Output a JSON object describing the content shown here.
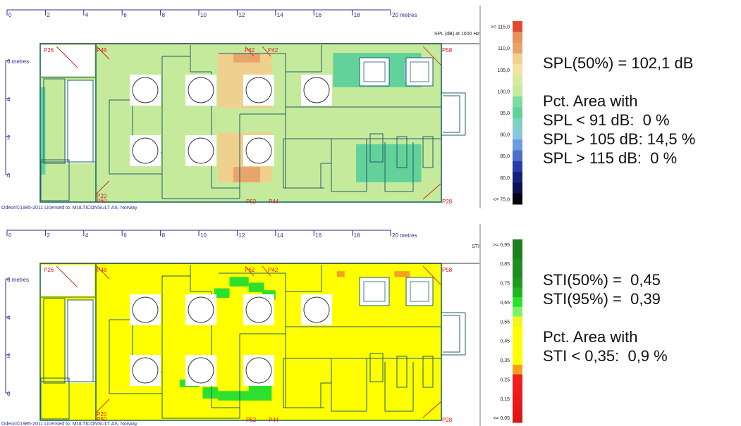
{
  "chart_data": [
    {
      "type": "heatmap",
      "title": "",
      "x_axis": {
        "unit_label": "metres",
        "ticks": [
          "0",
          "2",
          "4",
          "6",
          "8",
          "10",
          "12",
          "14",
          "16",
          "18",
          "20 metres"
        ],
        "range": [
          0,
          20
        ]
      },
      "y_axis": {
        "unit_label": "metres",
        "ticks": [
          "0",
          "2",
          "4",
          "6 metres"
        ],
        "range": [
          0,
          6
        ]
      },
      "legend": {
        "title": "SPL (dB) at 1000 Hz",
        "placement": "right",
        "entries": [
          {
            "label": ">= 115,0",
            "color": "#e04a32"
          },
          {
            "label": "",
            "color": "#e8935c"
          },
          {
            "label": "110,0",
            "color": "#e9a46c"
          },
          {
            "label": "",
            "color": "#efd08e"
          },
          {
            "label": "105,0",
            "color": "#f3e3a3"
          },
          {
            "label": "",
            "color": "#d6eaa4"
          },
          {
            "label": "100,0",
            "color": "#c6ea9c"
          },
          {
            "label": "",
            "color": "#7fd9a2"
          },
          {
            "label": "95,0",
            "color": "#62d19a"
          },
          {
            "label": "",
            "color": "#7fd0c2"
          },
          {
            "label": "90,0",
            "color": "#86c8dc"
          },
          {
            "label": "",
            "color": "#6d9be0"
          },
          {
            "label": "85,0",
            "color": "#4d6fc9"
          },
          {
            "label": "",
            "color": "#2a3aa6"
          },
          {
            "label": "80,0",
            "color": "#15207a"
          },
          {
            "label": "",
            "color": "#0c1250"
          },
          {
            "label": "<= 75,0",
            "color": "#050510"
          }
        ]
      },
      "base_color": "#c6ea9c",
      "zones": [
        {
          "color": "#62d19a",
          "x": [
            0,
            2
          ],
          "y": [
            0,
            4.6
          ]
        },
        {
          "color": "#efd08e",
          "x": [
            11,
            13.8
          ],
          "y": [
            -0.4,
            2.2
          ]
        },
        {
          "color": "#efd08e",
          "x": [
            11,
            13.8
          ],
          "y": [
            3.5,
            6.4
          ]
        },
        {
          "color": "#e9a46c",
          "x": [
            11.8,
            13.2
          ],
          "y": [
            -0.4,
            0.4
          ]
        },
        {
          "color": "#e9a46c",
          "x": [
            11.8,
            13.2
          ],
          "y": [
            5.9,
            6.4
          ]
        },
        {
          "color": "#62d19a",
          "x": [
            17,
            21.6
          ],
          "y": [
            4.6,
            6.4
          ]
        },
        {
          "color": "#62d19a",
          "x": [
            18.2,
            21.6
          ],
          "y": [
            -0.4,
            1.6
          ]
        },
        {
          "color": "#86c8dc",
          "x": [
            20.7,
            21.2
          ],
          "y": [
            4.9,
            5.9
          ]
        }
      ],
      "point_labels": [
        "P26",
        "P48",
        "P62",
        "P42",
        "P58",
        "P20",
        "P60",
        "P52",
        "P44",
        "P28"
      ],
      "credit": "Odeon©1985-2011   Licensed to: MULTICONSULT AS, Norway"
    },
    {
      "type": "heatmap",
      "title": "",
      "x_axis": {
        "unit_label": "metres",
        "ticks": [
          "0",
          "2",
          "4",
          "6",
          "8",
          "10",
          "12",
          "14",
          "16",
          "18",
          "20 metres"
        ],
        "range": [
          0,
          20
        ]
      },
      "y_axis": {
        "unit_label": "metres",
        "ticks": [
          "0",
          "2",
          "4",
          "6 metres"
        ],
        "range": [
          0,
          6
        ]
      },
      "legend": {
        "title": "STI",
        "placement": "right",
        "entries": [
          {
            "label": ">= 0,95",
            "color": "#1e7d1e"
          },
          {
            "label": "",
            "color": "#1e7d1e"
          },
          {
            "label": "0,85",
            "color": "#1e8c1e"
          },
          {
            "label": "",
            "color": "#1e8c1e"
          },
          {
            "label": "0,75",
            "color": "#1f9a1f"
          },
          {
            "label": "",
            "color": "#22b522"
          },
          {
            "label": "0,65",
            "color": "#2ee02e"
          },
          {
            "label": "",
            "color": "#7df266"
          },
          {
            "label": "0,55",
            "color": "#f4f420"
          },
          {
            "label": "",
            "color": "#ffff00"
          },
          {
            "label": "0,45",
            "color": "#ffff00"
          },
          {
            "label": "",
            "color": "#ffff00"
          },
          {
            "label": "0,35",
            "color": "#ffff00"
          },
          {
            "label": "",
            "color": "#f5a020"
          },
          {
            "label": "0,25",
            "color": "#f02020"
          },
          {
            "label": "",
            "color": "#ee1c1c"
          },
          {
            "label": "0,15",
            "color": "#e81a1a"
          },
          {
            "label": "",
            "color": "#e21818"
          },
          {
            "label": "<= 0,05",
            "color": "#dc1616"
          }
        ]
      },
      "base_color": "#ffff00",
      "zones": [
        {
          "color": "#2ee02e",
          "x": [
            11.6,
            12.6
          ],
          "y": [
            5.6,
            6.1
          ]
        },
        {
          "color": "#2ee02e",
          "x": [
            12.6,
            13.4
          ],
          "y": [
            5.3,
            5.8
          ]
        },
        {
          "color": "#2ee02e",
          "x": [
            10.8,
            11.6
          ],
          "y": [
            5.0,
            5.5
          ]
        },
        {
          "color": "#2ee02e",
          "x": [
            13.3,
            14.0
          ],
          "y": [
            4.9,
            5.4
          ]
        },
        {
          "color": "#2ee02e",
          "x": [
            9.6,
            10.3
          ],
          "y": [
            4.2,
            4.6
          ]
        },
        {
          "color": "#2ee02e",
          "x": [
            12.4,
            13.2
          ],
          "y": [
            1.0,
            1.4
          ]
        },
        {
          "color": "#2ee02e",
          "x": [
            9.0,
            10.0
          ],
          "y": [
            0.3,
            0.7
          ]
        },
        {
          "color": "#2ee02e",
          "x": [
            10.2,
            11.0
          ],
          "y": [
            -0.3,
            0.3
          ]
        },
        {
          "color": "#2ee02e",
          "x": [
            11.0,
            12.8
          ],
          "y": [
            -0.4,
            0.1
          ]
        },
        {
          "color": "#2ee02e",
          "x": [
            12.6,
            13.8
          ],
          "y": [
            -0.4,
            0.5
          ]
        },
        {
          "color": "#f5a020",
          "x": [
            17.2,
            17.6
          ],
          "y": [
            6.1,
            6.4
          ]
        },
        {
          "color": "#f5a020",
          "x": [
            20.2,
            21.0
          ],
          "y": [
            6.1,
            6.4
          ]
        },
        {
          "color": "#e21818",
          "x": [
            20.9,
            21.4
          ],
          "y": [
            4.9,
            5.8
          ]
        }
      ],
      "point_labels": [
        "P26",
        "P48",
        "P62",
        "P42",
        "P58",
        "P20",
        "P60",
        "P52",
        "P44",
        "P28"
      ],
      "credit": "Odeon©1985-2011   Licensed to: MULTICONSULT AS, Norway"
    }
  ],
  "spl_stats": [
    "SPL(50%) = 102,1 dB",
    "",
    "Pct. Area with",
    "SPL < 91 dB:  0 %",
    "SPL > 105 dB: 14,5 %",
    "SPL > 115 dB:  0 %"
  ],
  "sti_stats": [
    "STI(50%) =  0,45",
    "STI(95%) =  0,39",
    "",
    "Pct. Area with",
    "STI < 0,35:  0,9 %"
  ],
  "colors": {
    "axis": "#2c2c90",
    "outline": "#1a6a66",
    "room_line": "#1e5f6a",
    "label_red": "#d81c1c",
    "text": "#111111"
  }
}
